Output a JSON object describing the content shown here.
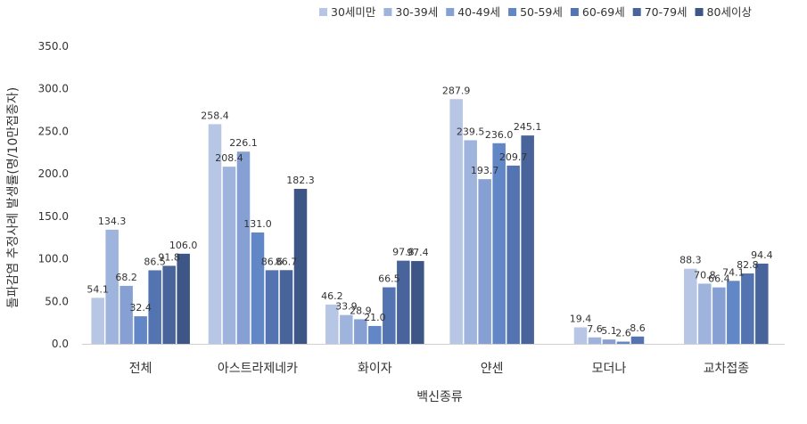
{
  "chart_data": {
    "type": "bar",
    "xlabel": "백신종류",
    "ylabel": "돌파감염 추정사례 발생률(명/10만접종자)",
    "ylim": [
      0,
      350
    ],
    "yticks": [
      "0.0",
      "50.0",
      "100.0",
      "150.0",
      "200.0",
      "250.0",
      "300.0",
      "350.0"
    ],
    "grid": false,
    "legend_position": "top-right",
    "categories": [
      "전체",
      "아스트라제네카",
      "화이자",
      "얀센",
      "모더나",
      "교차접종"
    ],
    "series": [
      {
        "name": "30세미만",
        "color": "#b7c6e5",
        "values": [
          54.1,
          258.4,
          46.2,
          287.9,
          19.4,
          88.3
        ],
        "labels": [
          "54.1",
          "258.4",
          "46.2",
          "287.9",
          "19.4",
          "88.3"
        ]
      },
      {
        "name": "30-39세",
        "color": "#9fb4dd",
        "values": [
          134.3,
          208.4,
          33.9,
          239.5,
          7.6,
          70.8
        ],
        "labels": [
          "134.3",
          "208.4",
          "33.9",
          "239.5",
          "7.6",
          "70.8"
        ]
      },
      {
        "name": "40-49세",
        "color": "#86a0d4",
        "values": [
          68.2,
          226.1,
          28.9,
          193.7,
          5.1,
          66.4
        ],
        "labels": [
          "68.2",
          "226.1",
          "28.9",
          "193.7",
          "5.1",
          "66.4"
        ]
      },
      {
        "name": "50-59세",
        "color": "#6287c6",
        "values": [
          32.4,
          131.0,
          21.0,
          236.0,
          2.6,
          74.1
        ],
        "labels": [
          "32.4",
          "131.0",
          "21.0",
          "236.0",
          "2.6",
          "74.1"
        ]
      },
      {
        "name": "60-69세",
        "color": "#5374b0",
        "values": [
          86.5,
          86.6,
          66.5,
          209.7,
          8.6,
          82.8
        ],
        "labels": [
          "86.5",
          "86.6",
          "66.5",
          "209.7",
          "8.6",
          "82.8"
        ]
      },
      {
        "name": "70-79세",
        "color": "#48649b",
        "values": [
          91.8,
          86.7,
          97.8,
          245.1,
          null,
          94.4
        ],
        "labels": [
          "91.8",
          "86.7",
          "97.8",
          "245.1",
          "",
          "94.4"
        ]
      },
      {
        "name": "80세이상",
        "color": "#3d5685",
        "values": [
          106.0,
          182.3,
          97.4,
          null,
          null,
          null
        ],
        "labels": [
          "106.0",
          "182.3",
          "97.4",
          "",
          "",
          ""
        ]
      }
    ]
  }
}
